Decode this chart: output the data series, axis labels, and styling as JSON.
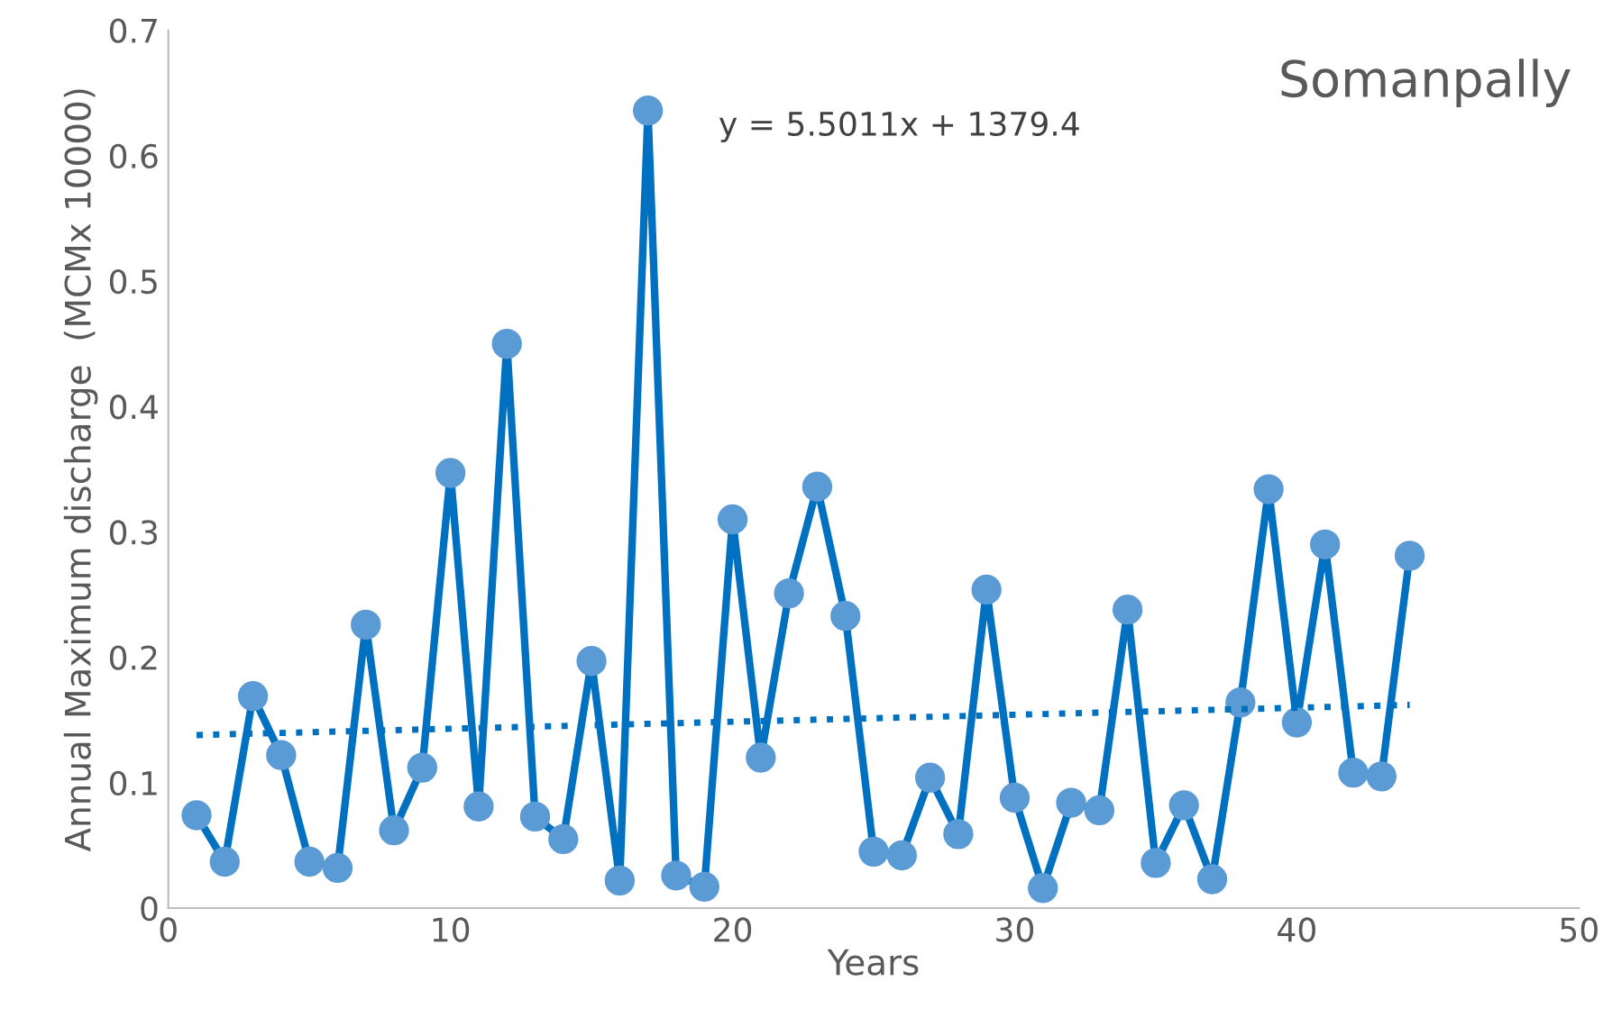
{
  "chart_data": {
    "type": "line",
    "title": "Somanpally",
    "xlabel": "Years",
    "ylabel": "Annual Maximum discharge  (MCMx 10000)",
    "annotations": [
      "y = 5.5011x + 1379.4"
    ],
    "x": [
      1,
      2,
      3,
      4,
      5,
      6,
      7,
      8,
      9,
      10,
      11,
      12,
      13,
      14,
      15,
      16,
      17,
      18,
      19,
      20,
      21,
      22,
      23,
      24,
      25,
      26,
      27,
      28,
      29,
      30,
      31,
      32,
      33,
      34,
      35,
      36,
      37,
      38,
      39,
      40,
      41,
      42,
      43,
      44
    ],
    "series": [
      {
        "color": "#0070c0",
        "marker": "circle",
        "line_style": "solid",
        "values": [
          0.074,
          0.037,
          0.169,
          0.122,
          0.037,
          0.032,
          0.226,
          0.062,
          0.112,
          0.347,
          0.081,
          0.45,
          0.073,
          0.055,
          0.197,
          0.022,
          0.636,
          0.026,
          0.017,
          0.31,
          0.12,
          0.251,
          0.336,
          0.233,
          0.045,
          0.042,
          0.104,
          0.059,
          0.254,
          0.088,
          0.016,
          0.084,
          0.078,
          0.238,
          0.036,
          0.082,
          0.023,
          0.164,
          0.334,
          0.148,
          0.29,
          0.108,
          0.105,
          0.281
        ]
      },
      {
        "type": "line",
        "color": "#0070c0",
        "marker": "none",
        "line_style": "dotted",
        "x": [
          1,
          44
        ],
        "values": [
          0.138,
          0.162
        ]
      }
    ],
    "xlim": [
      0,
      50
    ],
    "xticks": [
      0,
      10,
      20,
      30,
      40,
      50
    ],
    "ylim": [
      0,
      0.7
    ],
    "yticks": [
      0,
      0.1,
      0.2,
      0.3,
      0.4,
      0.5,
      0.6,
      0.7
    ],
    "grid": false,
    "legend": false
  }
}
